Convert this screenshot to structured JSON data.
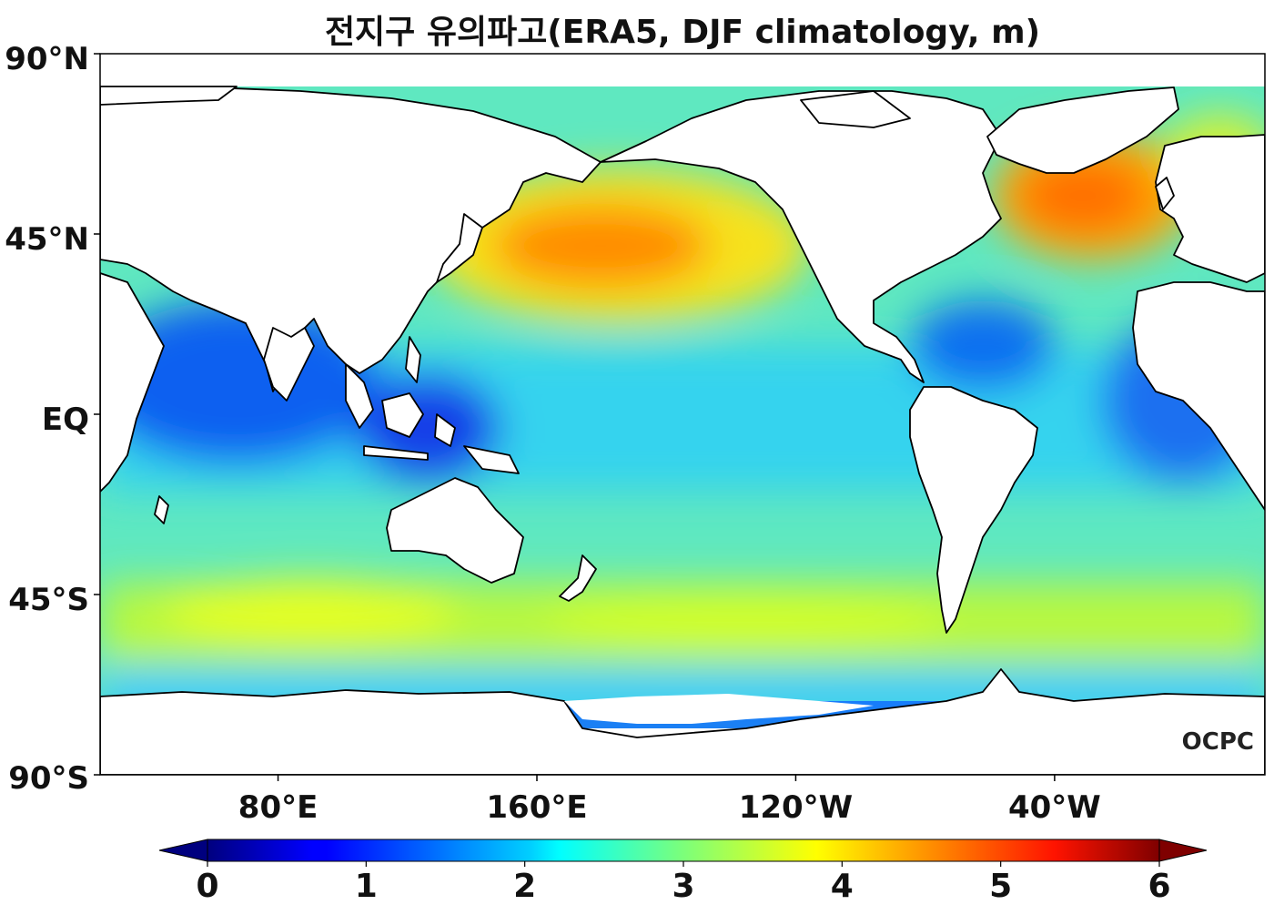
{
  "title": "전지구 유의파고(ERA5, DJF climatology, m)",
  "map": {
    "lat_ticks": [
      "90°N",
      "45°N",
      "EQ",
      "45°S",
      "90°S"
    ],
    "lon_ticks": [
      "80°E",
      "160°E",
      "120°W",
      "40°W"
    ],
    "lon_tick_values": [
      80,
      160,
      240,
      320
    ],
    "lon_range": [
      25,
      385
    ],
    "lat_range": [
      -90,
      90
    ],
    "land_color": "#ffffff",
    "coast_color": "#000000"
  },
  "colorbar": {
    "min": 0,
    "max": 6,
    "ticks": [
      "0",
      "1",
      "2",
      "3",
      "4",
      "5",
      "6"
    ],
    "colormap": "jet",
    "extend": "both"
  },
  "logo": "OCPC"
}
